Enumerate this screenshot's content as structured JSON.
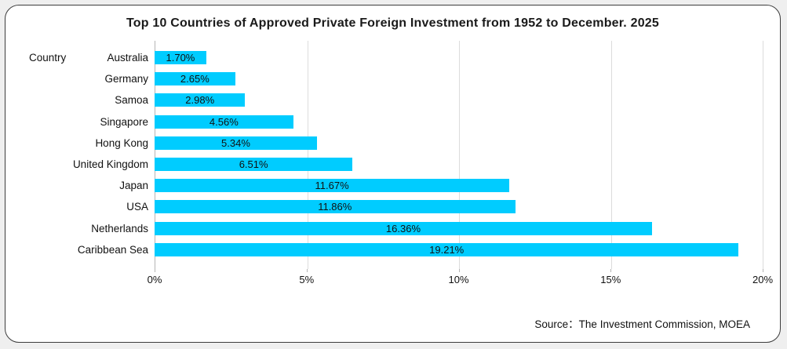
{
  "colors": {
    "bar": "#00CCFF",
    "gridline": "#dcdcdc",
    "axis_line": "#b5b5b5",
    "card_border": "#3c3c3c",
    "page_background": "#efefef",
    "bar_label_text": "#111111"
  },
  "chart_data": {
    "type": "bar",
    "orientation": "horizontal",
    "title": "Top 10 Countries of Approved Private Foreign Investment from 1952 to December. 2025",
    "axis_label": "Country",
    "categories": [
      "Australia",
      "Germany",
      "Samoa",
      "Singapore",
      "Hong Kong",
      "United Kingdom",
      "Japan",
      "USA",
      "Netherlands",
      "Caribbean Sea"
    ],
    "values": [
      1.7,
      2.65,
      2.98,
      4.56,
      5.34,
      6.51,
      11.67,
      11.86,
      16.36,
      19.21
    ],
    "value_labels": [
      "1.70%",
      "2.65%",
      "2.98%",
      "4.56%",
      "5.34%",
      "6.51%",
      "11.67%",
      "11.86%",
      "16.36%",
      "19.21%"
    ],
    "xlim": [
      0,
      20
    ],
    "x_ticks": [
      0,
      5,
      10,
      15,
      20
    ],
    "x_tick_labels": [
      "0%",
      "5%",
      "10%",
      "15%",
      "20%"
    ],
    "grid": true,
    "legend": "none",
    "source": "Source：The Investment Commission, MOEA"
  }
}
